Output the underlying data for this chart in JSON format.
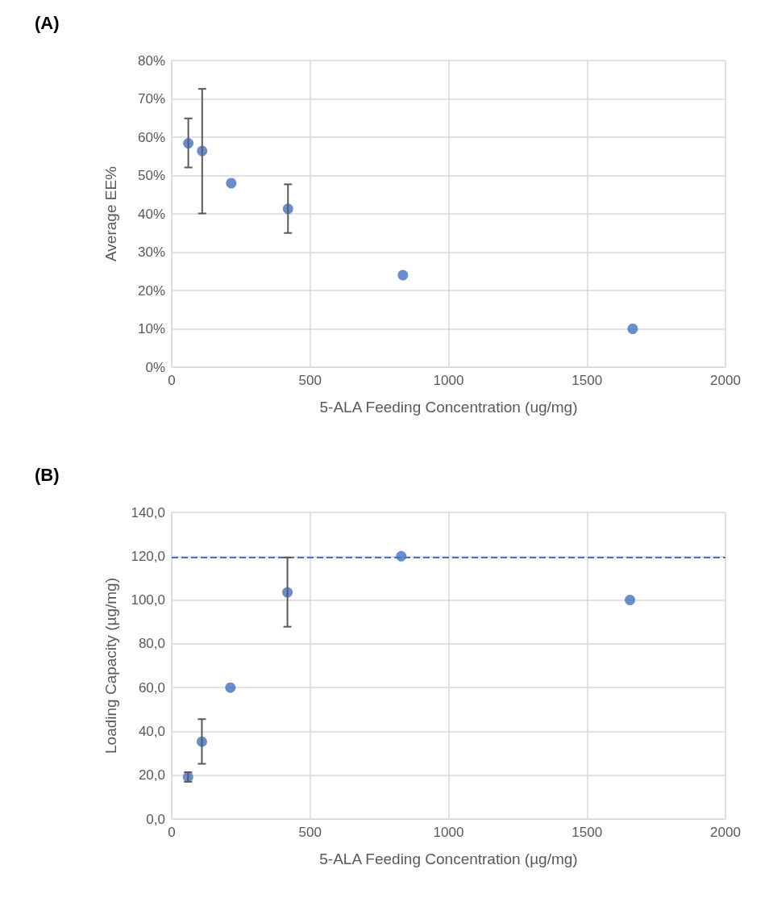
{
  "chart_data": [
    {
      "type": "scatter",
      "title": "(A)",
      "xlabel": "5-ALA Feeding Concentration (ug/mg)",
      "ylabel": "Average EE%",
      "x": [
        60,
        110,
        215,
        420,
        835,
        1665
      ],
      "series": [
        {
          "color": "#4472c4",
          "values": [
            58.4,
            56.4,
            48.0,
            41.3,
            24.0,
            10.0
          ],
          "errors": [
            [
              52.1,
              64.9
            ],
            [
              40.1,
              72.6
            ],
            null,
            [
              35.0,
              47.7
            ],
            null,
            null
          ]
        }
      ],
      "xlim": [
        0,
        2000
      ],
      "xticks": [
        0,
        500,
        1000,
        1500,
        2000
      ],
      "ylim": [
        0,
        80
      ],
      "yticks": [
        {
          "value": 0,
          "label": "0%"
        },
        {
          "value": 10,
          "label": "10%"
        },
        {
          "value": 20,
          "label": "20%"
        },
        {
          "value": 30,
          "label": "30%"
        },
        {
          "value": 40,
          "label": "40%"
        },
        {
          "value": 50,
          "label": "50%"
        },
        {
          "value": 60,
          "label": "60%"
        },
        {
          "value": 70,
          "label": "70%"
        },
        {
          "value": 80,
          "label": "80%"
        }
      ],
      "grid": true,
      "marker": "circle"
    },
    {
      "type": "scatter",
      "title": "(B)",
      "xlabel": "5-ALA Feeding Concentration (µg/mg)",
      "ylabel": "Loading Capacity (µg/mg)",
      "x": [
        59,
        109,
        212,
        418,
        829,
        1655
      ],
      "series": [
        {
          "color": "#4472c4",
          "values": [
            19.2,
            35.3,
            60.0,
            103.5,
            120.0,
            100.0
          ],
          "errors": [
            [
              17.0,
              21.4
            ],
            [
              25.2,
              45.6
            ],
            null,
            [
              87.8,
              119.4
            ],
            null,
            null
          ]
        }
      ],
      "xlim": [
        0,
        2000
      ],
      "xticks": [
        0,
        500,
        1000,
        1500,
        2000
      ],
      "ylim": [
        0,
        140
      ],
      "yticks": [
        {
          "value": 0,
          "label": "0,0"
        },
        {
          "value": 20,
          "label": "20,0"
        },
        {
          "value": 40,
          "label": "40,0"
        },
        {
          "value": 60,
          "label": "60,0"
        },
        {
          "value": 80,
          "label": "80,0"
        },
        {
          "value": 100,
          "label": "100,0"
        },
        {
          "value": 120,
          "label": "120,0"
        },
        {
          "value": 140,
          "label": "140,0"
        }
      ],
      "ref_lines": [
        {
          "axis": "y",
          "value": 119.4,
          "color": "#4472c4",
          "line_style": "dashed"
        }
      ],
      "grid": true,
      "marker": "circle"
    }
  ]
}
